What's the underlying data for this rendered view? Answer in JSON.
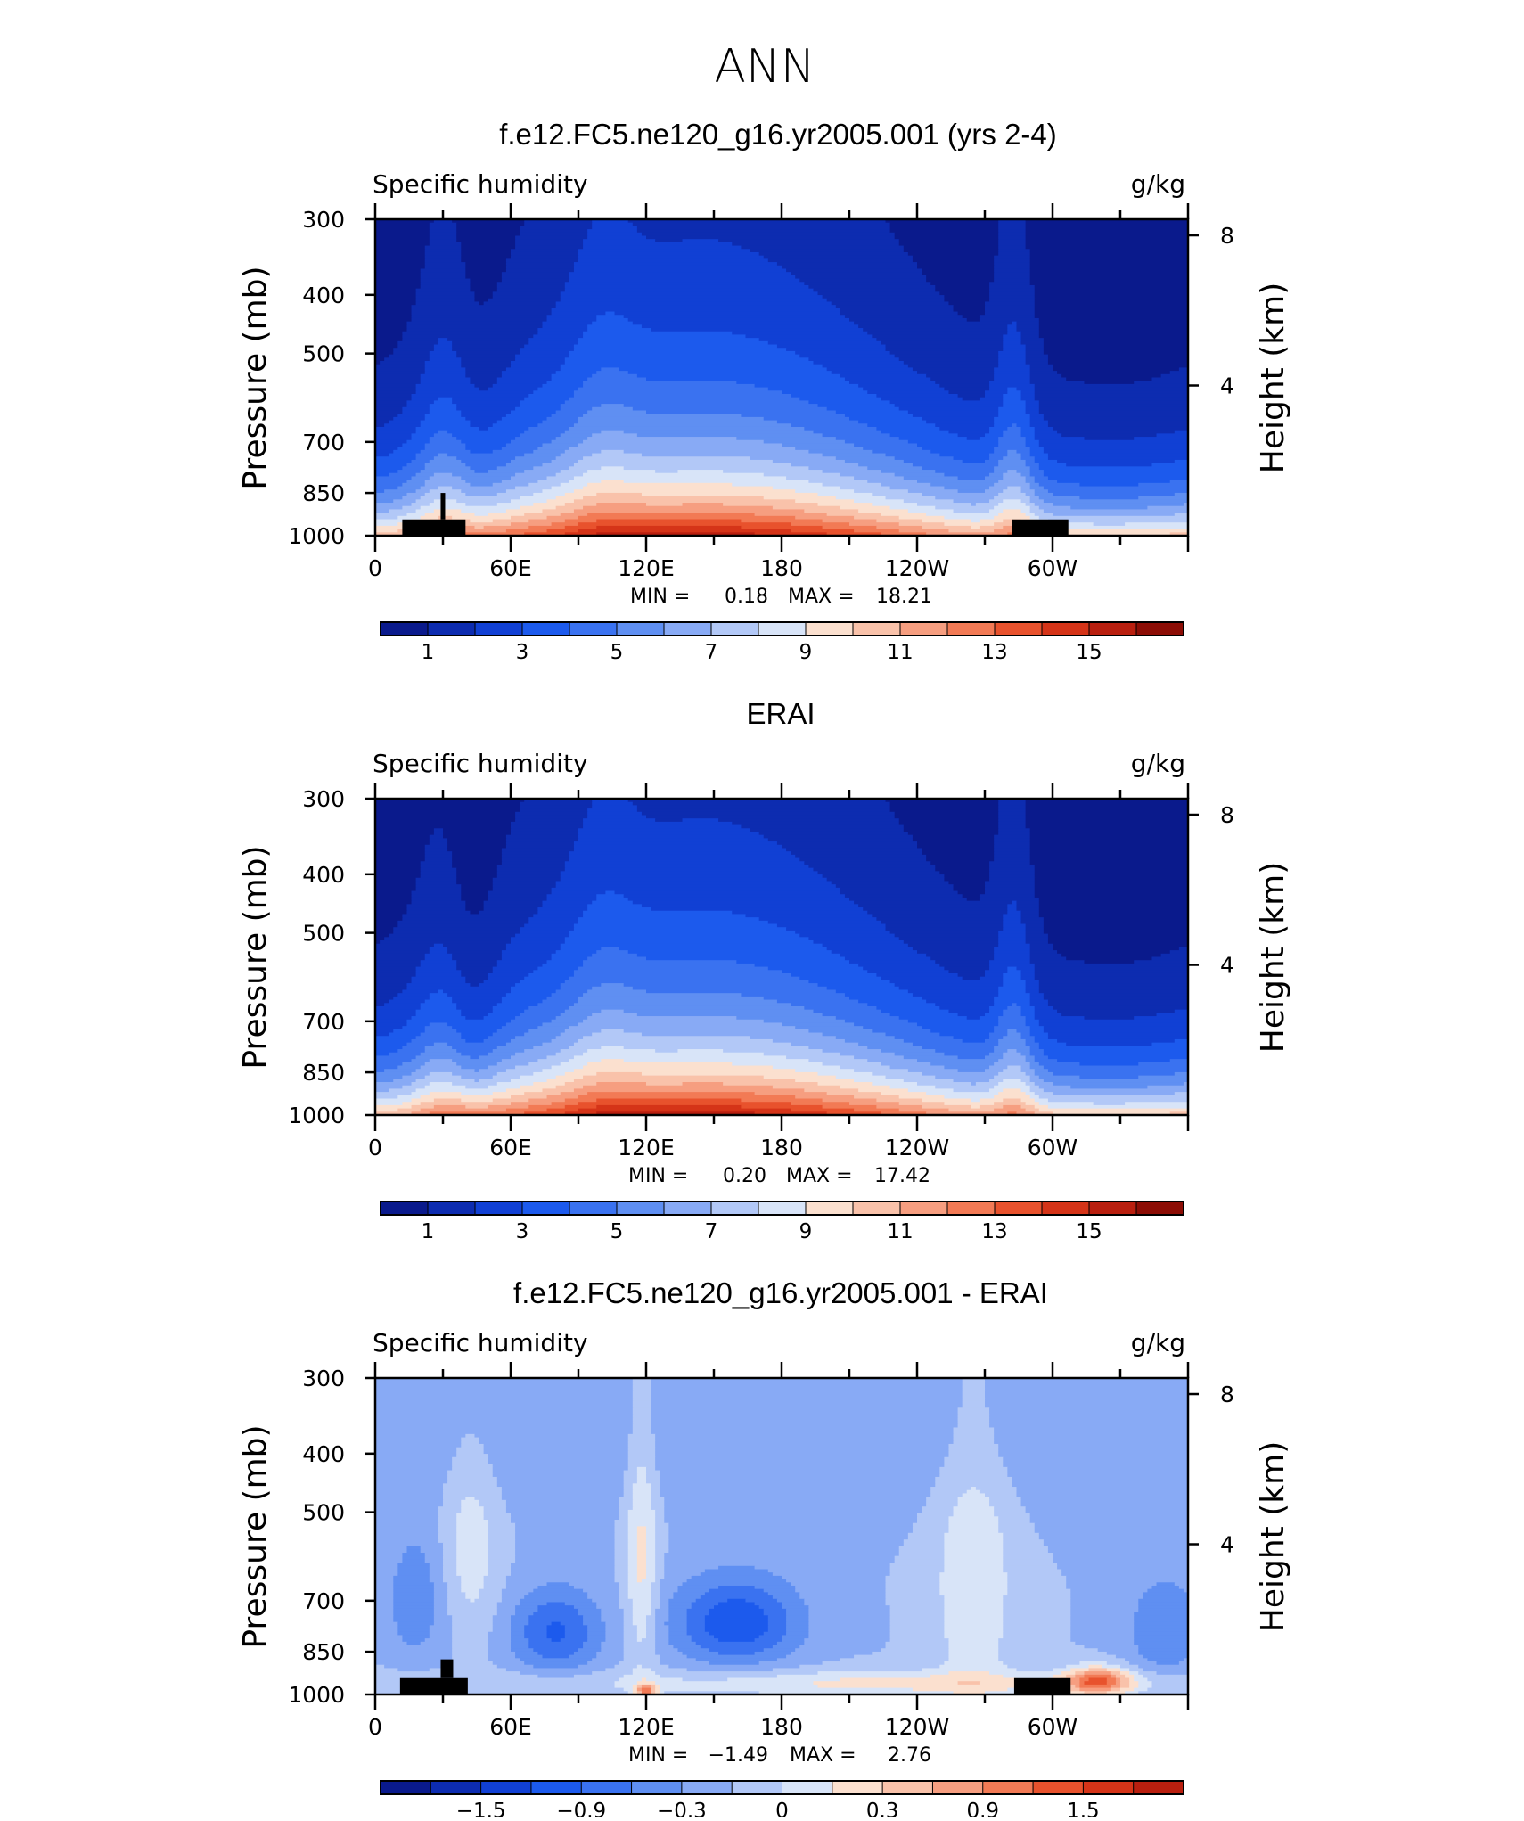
{
  "figure": {
    "title": "ANN"
  },
  "chart_data": [
    {
      "type": "heatmap",
      "title": "f.e12.FC5.ne120_g16.yr2005.001 (yrs 2-4)",
      "left_string": "Specific humidity",
      "right_string": "g/kg",
      "xlabel": "",
      "ylabel": "Pressure (mb)",
      "right_axis_label": "Height (km)",
      "x_tick_labels": [
        "0",
        "60E",
        "120E",
        "180",
        "120W",
        "60W"
      ],
      "x_ticks_deg": [
        0,
        60,
        120,
        180,
        240,
        300
      ],
      "xlim_deg": [
        0,
        360
      ],
      "y_tick_labels": [
        "300",
        "400",
        "500",
        "700",
        "850",
        "1000"
      ],
      "y_ticks": [
        300,
        400,
        500,
        700,
        850,
        1000
      ],
      "ylim": [
        300,
        1000
      ],
      "right_tick_labels": [
        "8",
        "4"
      ],
      "right_ticks_km": [
        8,
        4
      ],
      "stats": {
        "min_label": "MIN =",
        "min": "0.18",
        "max_label": "MAX =",
        "max": "18.21"
      },
      "colorbar": {
        "levels": [
          0,
          1,
          2,
          3,
          4,
          5,
          6,
          7,
          8,
          9,
          10,
          11,
          12,
          13,
          14,
          15,
          16
        ],
        "tick_labels": [
          "1",
          "3",
          "5",
          "7",
          "9",
          "11",
          "13",
          "15"
        ],
        "tick_values": [
          1,
          3,
          5,
          7,
          9,
          11,
          13,
          15
        ],
        "colors": [
          "#0a1a8c",
          "#0d2cb0",
          "#1140d4",
          "#1c5aed",
          "#3a72f0",
          "#5f8ff2",
          "#88aaf5",
          "#b2c8f7",
          "#d8e4f8",
          "#fbe0cf",
          "#f9c2aa",
          "#f69e80",
          "#f27a55",
          "#e8522d",
          "#d53418",
          "#b91f0f",
          "#8c0d05"
        ]
      },
      "description_terrain": "black topography masks at 12-38E and 282-306E"
    },
    {
      "type": "heatmap",
      "title": "ERAI",
      "left_string": "Specific humidity",
      "right_string": "g/kg",
      "xlabel": "",
      "ylabel": "Pressure (mb)",
      "right_axis_label": "Height (km)",
      "x_tick_labels": [
        "0",
        "60E",
        "120E",
        "180",
        "120W",
        "60W"
      ],
      "x_ticks_deg": [
        0,
        60,
        120,
        180,
        240,
        300
      ],
      "xlim_deg": [
        0,
        360
      ],
      "y_tick_labels": [
        "300",
        "400",
        "500",
        "700",
        "850",
        "1000"
      ],
      "y_ticks": [
        300,
        400,
        500,
        700,
        850,
        1000
      ],
      "ylim": [
        300,
        1000
      ],
      "right_tick_labels": [
        "8",
        "4"
      ],
      "right_ticks_km": [
        8,
        4
      ],
      "stats": {
        "min_label": "MIN =",
        "min": "0.20",
        "max_label": "MAX =",
        "max": "17.42"
      },
      "colorbar": {
        "levels": [
          0,
          1,
          2,
          3,
          4,
          5,
          6,
          7,
          8,
          9,
          10,
          11,
          12,
          13,
          14,
          15,
          16
        ],
        "tick_labels": [
          "1",
          "3",
          "5",
          "7",
          "9",
          "11",
          "13",
          "15"
        ],
        "tick_values": [
          1,
          3,
          5,
          7,
          9,
          11,
          13,
          15
        ],
        "colors": [
          "#0a1a8c",
          "#0d2cb0",
          "#1140d4",
          "#1c5aed",
          "#3a72f0",
          "#5f8ff2",
          "#88aaf5",
          "#b2c8f7",
          "#d8e4f8",
          "#fbe0cf",
          "#f9c2aa",
          "#f69e80",
          "#f27a55",
          "#e8522d",
          "#d53418",
          "#b91f0f",
          "#8c0d05"
        ]
      }
    },
    {
      "type": "heatmap",
      "title": "f.e12.FC5.ne120_g16.yr2005.001 - ERAI",
      "left_string": "Specific humidity",
      "right_string": "g/kg",
      "xlabel": "",
      "ylabel": "Pressure (mb)",
      "right_axis_label": "Height (km)",
      "x_tick_labels": [
        "0",
        "60E",
        "120E",
        "180",
        "120W",
        "60W"
      ],
      "x_ticks_deg": [
        0,
        60,
        120,
        180,
        240,
        300
      ],
      "xlim_deg": [
        0,
        360
      ],
      "y_tick_labels": [
        "300",
        "400",
        "500",
        "700",
        "850",
        "1000"
      ],
      "y_ticks": [
        300,
        400,
        500,
        700,
        850,
        1000
      ],
      "ylim": [
        300,
        1000
      ],
      "right_tick_labels": [
        "8",
        "4"
      ],
      "right_ticks_km": [
        8,
        4
      ],
      "stats": {
        "min_label": "MIN =",
        "min": "−1.49",
        "max_label": "MAX =",
        "max": "2.76"
      },
      "colorbar": {
        "levels": [
          -2.1,
          -1.8,
          -1.5,
          -1.2,
          -0.9,
          -0.6,
          -0.3,
          0,
          0.3,
          0.6,
          0.9,
          1.2,
          1.5,
          1.8,
          2.1,
          2.4
        ],
        "tick_labels": [
          "−1.5",
          "−0.9",
          "−0.3",
          "0",
          "0.3",
          "0.9",
          "1.5"
        ],
        "tick_slot_index": [
          2,
          4,
          6,
          8,
          10,
          12,
          14
        ],
        "colors": [
          "#0a1a8c",
          "#0d2cb0",
          "#1140d4",
          "#1c5aed",
          "#3a72f0",
          "#5f8ff2",
          "#88aaf5",
          "#b2c8f7",
          "#d8e4f8",
          "#fbe0cf",
          "#f9c2aa",
          "#f69e80",
          "#f27a55",
          "#e8522d",
          "#d53418",
          "#b91f0f"
        ]
      },
      "description_terrain": "black topography masks at 10-40E and 282-306E"
    }
  ]
}
